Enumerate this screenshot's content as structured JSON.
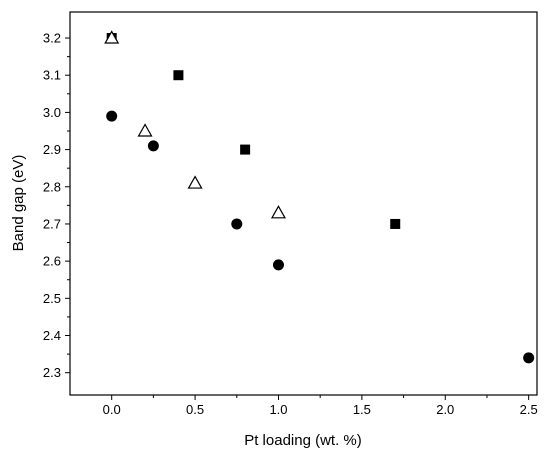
{
  "chart_data": {
    "type": "scatter",
    "title": "",
    "xlabel": "Pt loading (wt. %)",
    "ylabel": "Band gap (eV)",
    "xlim": [
      -0.25,
      2.55
    ],
    "ylim": [
      2.24,
      3.27
    ],
    "xticks": [
      0.0,
      0.5,
      1.0,
      1.5,
      2.0,
      2.5
    ],
    "xtick_labels": [
      "0.0",
      "0.5",
      "1.0",
      "1.5",
      "2.0",
      "2.5"
    ],
    "yticks": [
      2.3,
      2.4,
      2.5,
      2.6,
      2.7,
      2.8,
      2.9,
      3.0,
      3.1,
      3.2
    ],
    "ytick_labels": [
      "2.3",
      "2.4",
      "2.5",
      "2.6",
      "2.7",
      "2.8",
      "2.9",
      "3.0",
      "3.1",
      "3.2"
    ],
    "grid": false,
    "series": [
      {
        "marker": "filled-square",
        "color": "#000000",
        "points": [
          [
            0.0,
            3.2
          ],
          [
            0.4,
            3.1
          ],
          [
            0.8,
            2.9
          ],
          [
            1.7,
            2.7
          ]
        ]
      },
      {
        "marker": "filled-circle",
        "color": "#000000",
        "points": [
          [
            0.0,
            2.99
          ],
          [
            0.25,
            2.91
          ],
          [
            0.75,
            2.7
          ],
          [
            1.0,
            2.59
          ],
          [
            2.5,
            2.34
          ]
        ]
      },
      {
        "marker": "open-triangle",
        "color": "#000000",
        "points": [
          [
            0.0,
            3.2
          ],
          [
            0.2,
            2.95
          ],
          [
            0.5,
            2.81
          ],
          [
            1.0,
            2.73
          ]
        ]
      }
    ]
  }
}
